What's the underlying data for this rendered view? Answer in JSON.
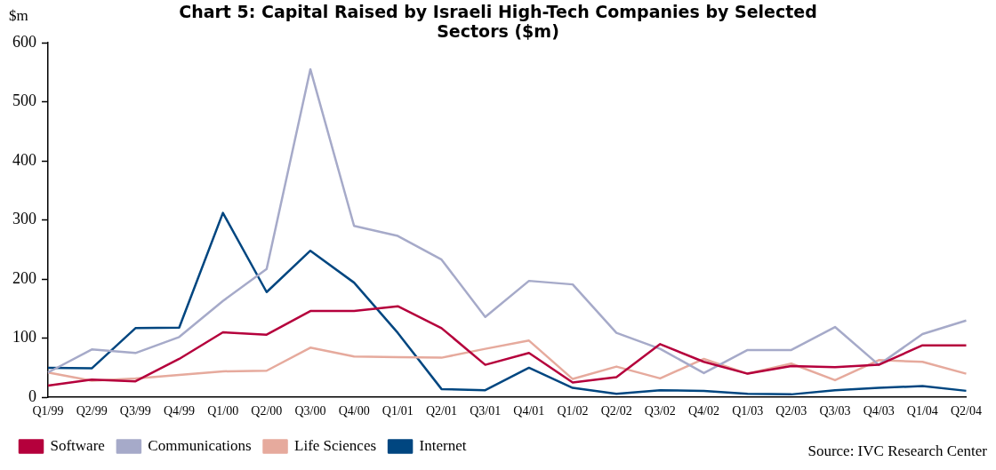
{
  "chart_data": {
    "type": "line",
    "title": "Chart 5: Capital Raised by Israeli High-Tech Companies by Selected Sectors ($m)",
    "ylabel": "$m",
    "categories": [
      "Q1/99",
      "Q2/99",
      "Q3/99",
      "Q4/99",
      "Q1/00",
      "Q2/00",
      "Q3/00",
      "Q4/00",
      "Q1/01",
      "Q2/01",
      "Q3/01",
      "Q4/01",
      "Q1/02",
      "Q2/02",
      "Q3/02",
      "Q4/02",
      "Q1/03",
      "Q2/03",
      "Q3/03",
      "Q4/03",
      "Q1/04",
      "Q2/04"
    ],
    "series": [
      {
        "name": "Software",
        "color": "#b5003c",
        "values": [
          20,
          30,
          27,
          65,
          110,
          106,
          146,
          146,
          154,
          117,
          55,
          75,
          25,
          34,
          90,
          60,
          40,
          53,
          51,
          55,
          88,
          88
        ]
      },
      {
        "name": "Communications",
        "color": "#a6aac9",
        "values": [
          42,
          81,
          75,
          102,
          163,
          217,
          555,
          290,
          273,
          233,
          136,
          197,
          191,
          109,
          82,
          41,
          80,
          80,
          119,
          55,
          107,
          130
        ]
      },
      {
        "name": "Life Sciences",
        "color": "#e6aa9d",
        "values": [
          42,
          28,
          32,
          38,
          44,
          45,
          84,
          69,
          68,
          67,
          82,
          96,
          31,
          52,
          32,
          65,
          40,
          57,
          29,
          63,
          60,
          40
        ]
      },
      {
        "name": "Internet",
        "color": "#004680",
        "values": [
          50,
          49,
          117,
          118,
          312,
          178,
          248,
          194,
          109,
          14,
          12,
          50,
          16,
          6,
          12,
          11,
          6,
          5,
          12,
          16,
          19,
          11
        ]
      }
    ],
    "ylim": [
      0,
      600
    ],
    "yticks": [
      0,
      100,
      200,
      300,
      400,
      500,
      600
    ],
    "grid": false,
    "legend": "bottom left",
    "marker": "none",
    "line_style": "solid",
    "annotations": [
      "Source: IVC Research Center"
    ]
  }
}
